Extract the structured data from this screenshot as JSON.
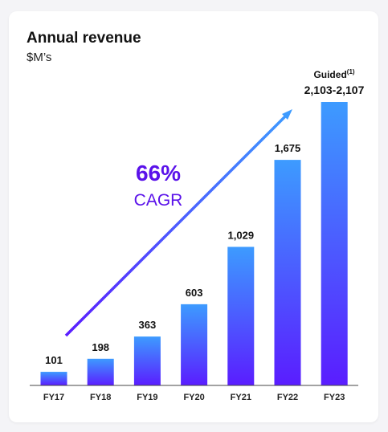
{
  "title": "Annual revenue",
  "subtitle": "$M’s",
  "colors": {
    "bar_top": "#3d9bff",
    "bar_bottom": "#5a1dff",
    "cagr_text": "#5a12ea",
    "arrow_start": "#5a1dff",
    "arrow_end": "#3d9bff"
  },
  "annotation": {
    "cagr_value": "66%",
    "cagr_label": "CAGR"
  },
  "chart_data": {
    "type": "bar",
    "title": "Annual revenue",
    "ylabel": "$M’s",
    "xlabel": "",
    "categories": [
      "FY17",
      "FY18",
      "FY19",
      "FY20",
      "FY21",
      "FY22",
      "FY23"
    ],
    "values": [
      101,
      198,
      363,
      603,
      1029,
      1675,
      2105
    ],
    "value_labels": [
      "101",
      "198",
      "363",
      "603",
      "1,029",
      "1,675",
      "2,103-2,107"
    ],
    "guided_note": {
      "text": "Guided",
      "superscript": "(1)"
    },
    "ylim": [
      0,
      2105
    ],
    "grid": false,
    "legend": "none"
  }
}
